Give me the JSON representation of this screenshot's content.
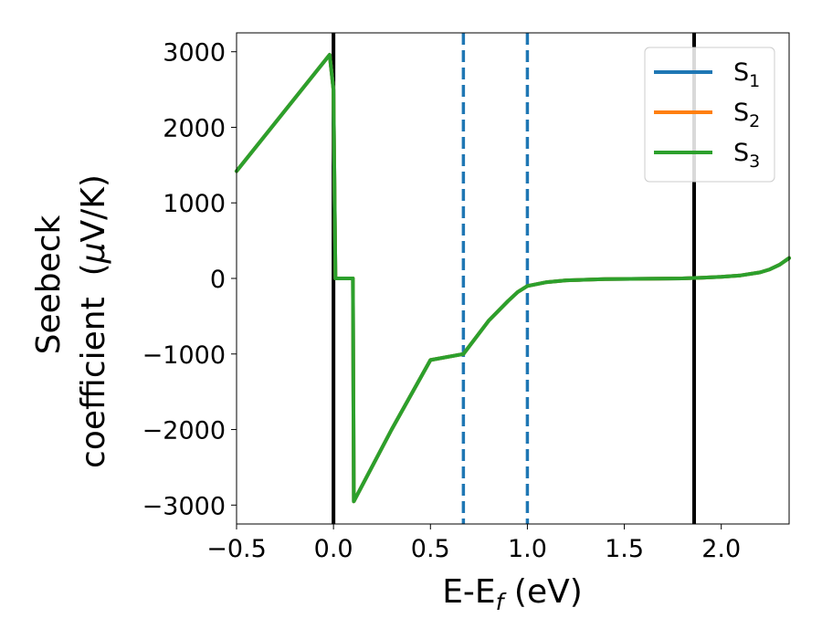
{
  "chart_data": {
    "type": "line",
    "xlabel": "E-E",
    "xlabel_sub": "f",
    "xlabel_unit": " (eV)",
    "ylabel_line1": "Seebeck",
    "ylabel_line2": "coefficient  (",
    "ylabel_mu": "μ",
    "ylabel_unit": "V/K)",
    "xlim": [
      -0.5,
      2.35
    ],
    "ylim": [
      -3250,
      3250
    ],
    "xticks": [
      -0.5,
      0.0,
      0.5,
      1.0,
      1.5,
      2.0
    ],
    "xtick_labels": [
      "−0.5",
      "0.0",
      "0.5",
      "1.0",
      "1.5",
      "2.0"
    ],
    "yticks": [
      3000,
      2000,
      1000,
      0,
      -1000,
      -2000,
      -3000
    ],
    "ytick_labels": [
      "3000",
      "2000",
      "1000",
      "0",
      "−1000",
      "−2000",
      "−3000"
    ],
    "legend_position": "top-right",
    "series": [
      {
        "name": "S",
        "subscript": "1",
        "color": "#1f77b4",
        "x": [
          -0.5,
          -0.02,
          0.0,
          0.01,
          0.02,
          0.1,
          0.105,
          0.3,
          0.5,
          0.67,
          0.8,
          0.9,
          0.95,
          1.0,
          1.1,
          1.2,
          1.4,
          1.6,
          1.8,
          1.9,
          2.0,
          2.1,
          2.2,
          2.25,
          2.3,
          2.35
        ],
        "values": [
          1420,
          2960,
          2500,
          0,
          0,
          0,
          -2950,
          -2000,
          -1080,
          -1000,
          -560,
          -300,
          -180,
          -100,
          -50,
          -25,
          -10,
          -5,
          0,
          10,
          20,
          40,
          80,
          120,
          180,
          270
        ]
      },
      {
        "name": "S",
        "subscript": "2",
        "color": "#ff7f0e",
        "x": [
          -0.5,
          -0.02,
          0.0,
          0.01,
          0.02,
          0.1,
          0.105,
          0.3,
          0.5,
          0.67,
          0.8,
          0.9,
          0.95,
          1.0,
          1.1,
          1.2,
          1.4,
          1.6,
          1.8,
          1.9,
          2.0,
          2.1,
          2.2,
          2.25,
          2.3,
          2.35
        ],
        "values": [
          1420,
          2960,
          2500,
          0,
          0,
          0,
          -2950,
          -2000,
          -1080,
          -1000,
          -560,
          -300,
          -180,
          -100,
          -50,
          -25,
          -10,
          -5,
          0,
          10,
          20,
          40,
          80,
          120,
          180,
          270
        ]
      },
      {
        "name": "S",
        "subscript": "3",
        "color": "#2ca02c",
        "x": [
          -0.5,
          -0.02,
          0.0,
          0.01,
          0.02,
          0.1,
          0.105,
          0.3,
          0.5,
          0.67,
          0.8,
          0.9,
          0.95,
          1.0,
          1.1,
          1.2,
          1.4,
          1.6,
          1.8,
          1.9,
          2.0,
          2.1,
          2.2,
          2.25,
          2.3,
          2.35
        ],
        "values": [
          1420,
          2960,
          2500,
          0,
          0,
          0,
          -2950,
          -2000,
          -1080,
          -1000,
          -560,
          -300,
          -180,
          -100,
          -50,
          -25,
          -10,
          -5,
          0,
          10,
          20,
          40,
          80,
          120,
          180,
          270
        ]
      }
    ],
    "vertical_lines": [
      {
        "x": 0.0,
        "style": "solid",
        "color": "#000000"
      },
      {
        "x": 1.86,
        "style": "solid",
        "color": "#000000"
      },
      {
        "x": 0.67,
        "style": "dashed",
        "color": "#1f77b4"
      },
      {
        "x": 1.0,
        "style": "dashed",
        "color": "#1f77b4"
      }
    ]
  }
}
